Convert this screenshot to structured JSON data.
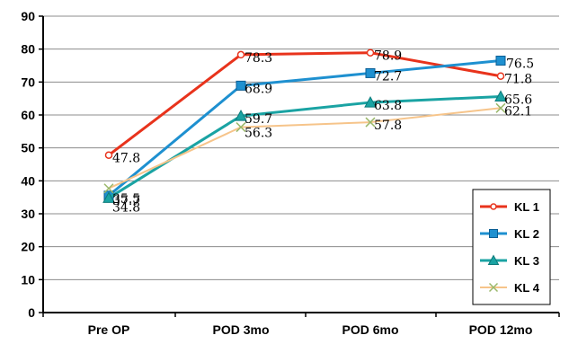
{
  "chart_data": {
    "type": "line",
    "title": "",
    "xlabel": "",
    "ylabel": "",
    "categories": [
      "Pre OP",
      "POD 3mo",
      "POD 6mo",
      "POD 12mo"
    ],
    "ylim": [
      0,
      90
    ],
    "yticks": [
      0,
      10,
      20,
      30,
      40,
      50,
      60,
      70,
      80,
      90
    ],
    "yticks_text": [
      "0",
      "10",
      "20",
      "30",
      "40",
      "50",
      "60",
      "70",
      "80",
      "90"
    ],
    "grid": true,
    "legend_position": "right",
    "series": [
      {
        "name": "KL 1",
        "values": [
          47.8,
          78.3,
          78.9,
          71.8
        ],
        "labels": [
          "47.8",
          "78.3",
          "78.9",
          "71.8"
        ],
        "color": "#e8331c",
        "marker": "circle"
      },
      {
        "name": "KL 2",
        "values": [
          35.5,
          68.9,
          72.7,
          76.5
        ],
        "labels": [
          "35.5",
          "68.9",
          "72.7",
          "76.5"
        ],
        "color": "#1e90d0",
        "marker": "square"
      },
      {
        "name": "KL 3",
        "values": [
          34.8,
          59.7,
          63.8,
          65.6
        ],
        "labels": [
          "34.8",
          "59.7",
          "63.8",
          "65.6"
        ],
        "color": "#1aa3a3",
        "marker": "triangle"
      },
      {
        "name": "KL 4",
        "values": [
          37.7,
          56.3,
          57.8,
          62.1
        ],
        "labels": [
          "37.7",
          "56.3",
          "57.8",
          "62.1"
        ],
        "color": "#f6c48a",
        "marker": "x"
      }
    ]
  }
}
